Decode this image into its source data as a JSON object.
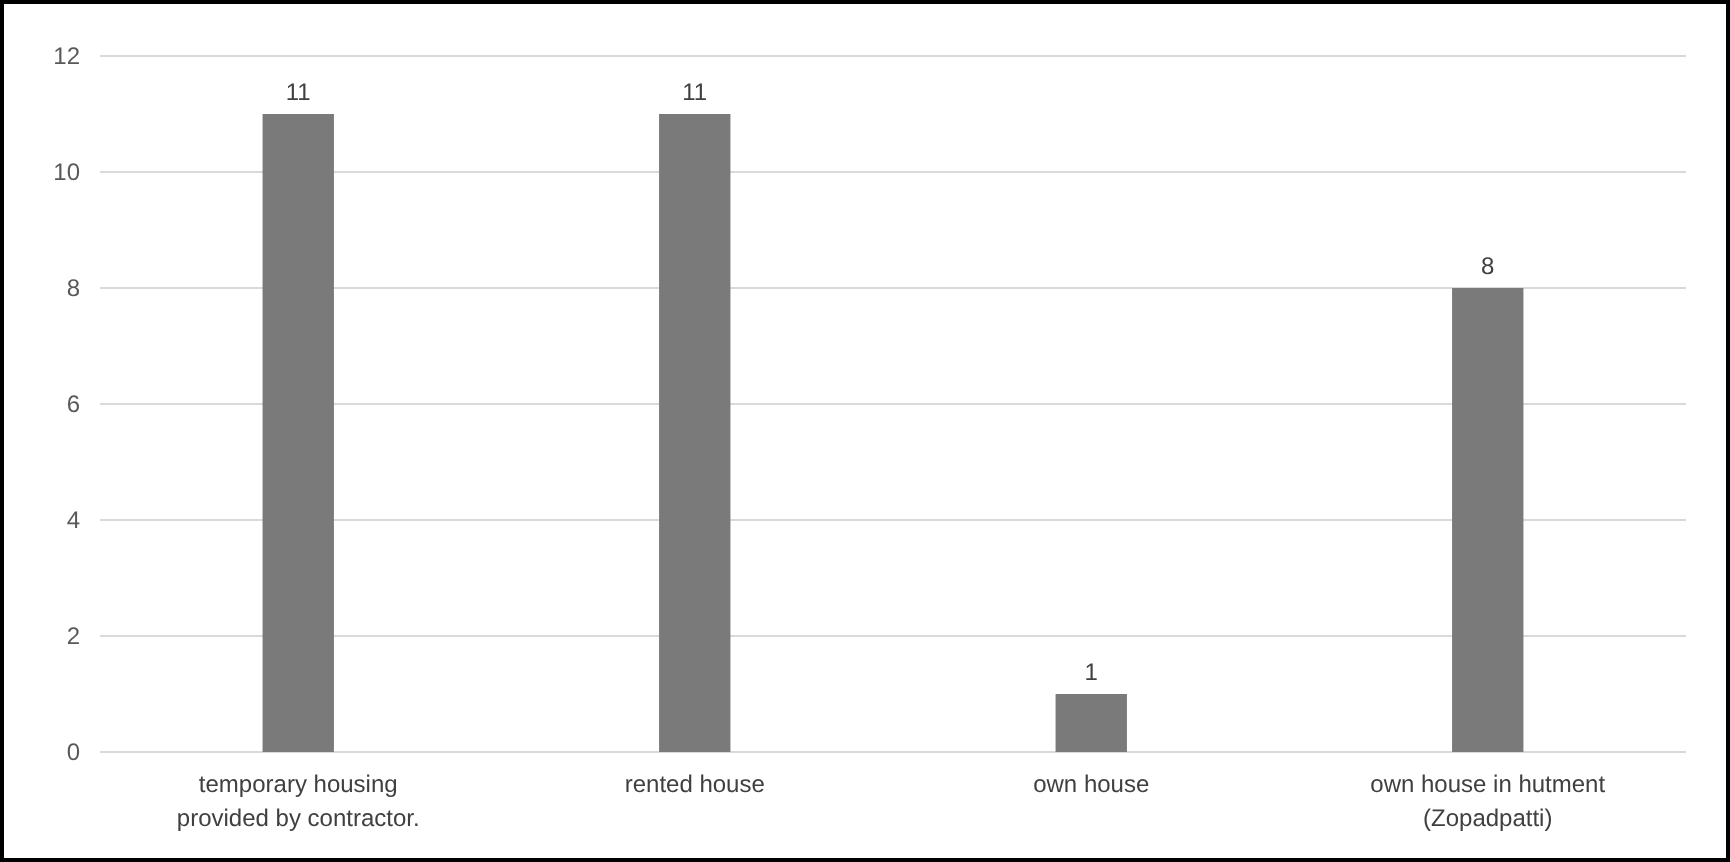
{
  "chart_data": {
    "type": "bar",
    "categories": [
      "temporary housing provided by contractor.",
      "rented house",
      "own house",
      "own house in hutment (Zopadpatti)"
    ],
    "values": [
      11,
      11,
      1,
      8
    ],
    "color": "#7a7a7a",
    "ylim": [
      0,
      12
    ],
    "yticks": [
      0,
      2,
      4,
      6,
      8,
      10,
      12
    ],
    "grid": "y",
    "data_labels": true
  }
}
